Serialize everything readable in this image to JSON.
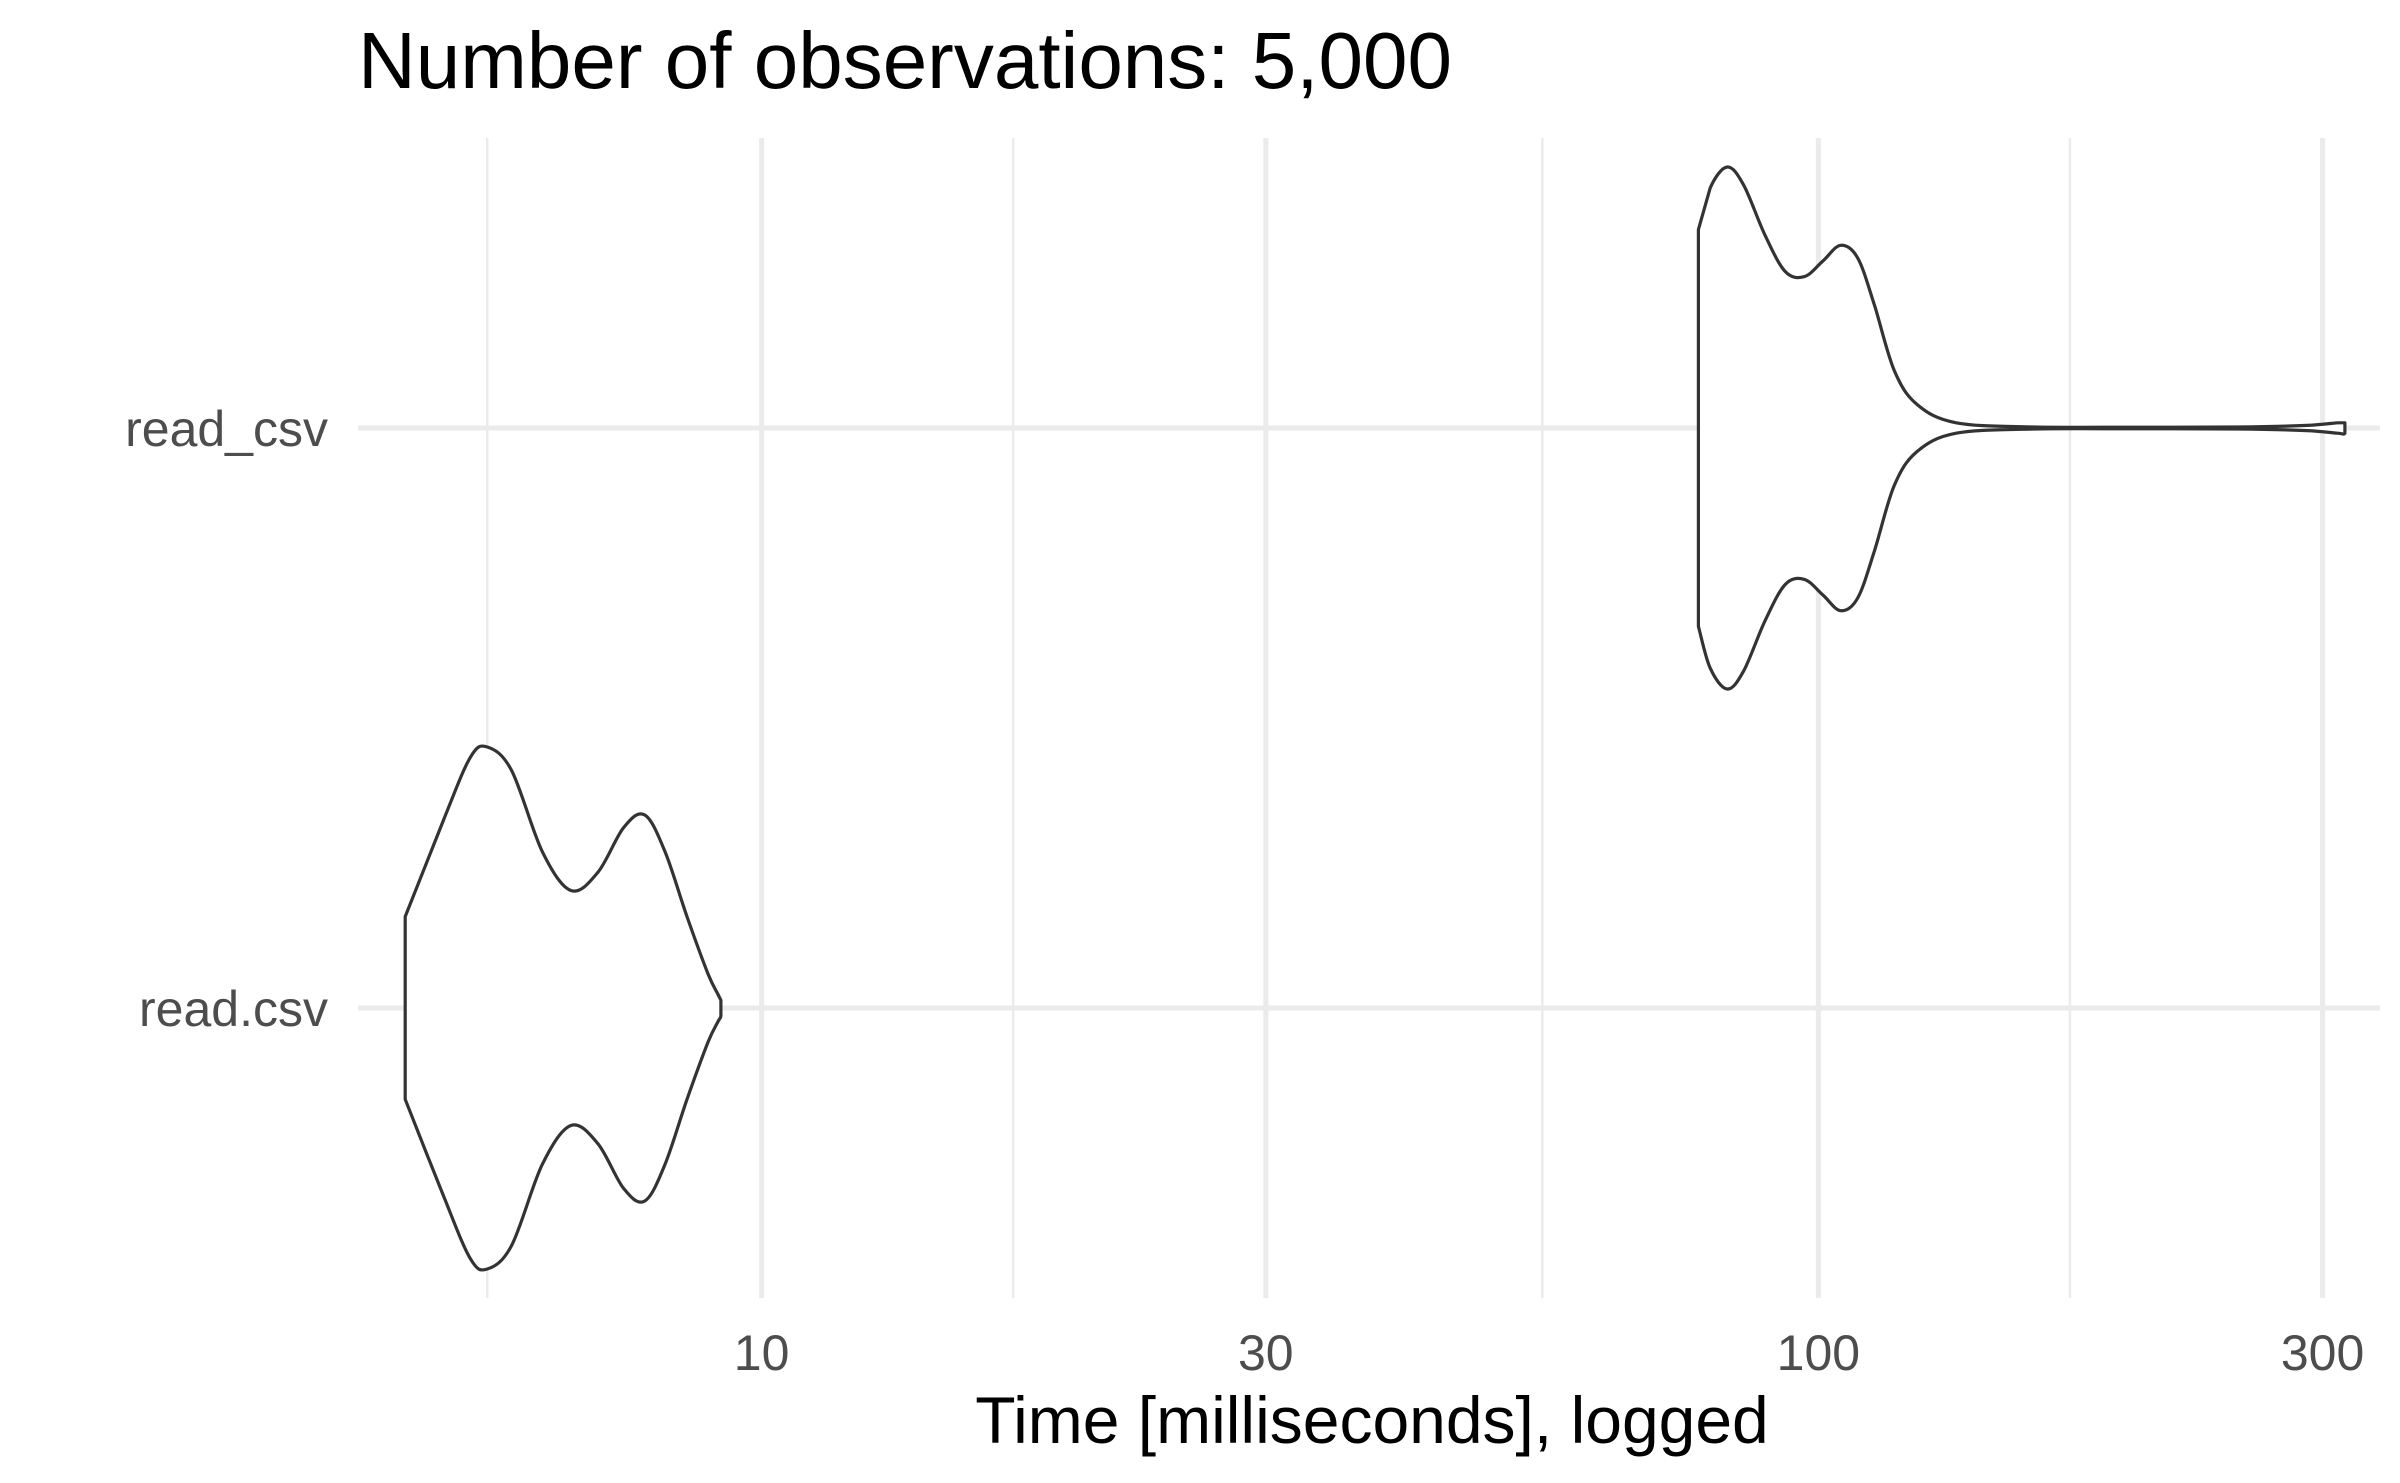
{
  "chart_data": {
    "type": "violin",
    "title": "Number of observations: 5,000",
    "xlabel": "Time [milliseconds], logged",
    "ylabel": "",
    "x_scale": "log10",
    "xlim": [
      4.15,
      340
    ],
    "x_ticks": [
      {
        "value": 10,
        "label": "10"
      },
      {
        "value": 30,
        "label": "30"
      },
      {
        "value": 100,
        "label": "100"
      },
      {
        "value": 300,
        "label": "300"
      }
    ],
    "x_minor_ticks": [
      5.5,
      17.3,
      54.8,
      173
    ],
    "categories": [
      "read_csv",
      "read.csv"
    ],
    "grid": true,
    "legend": "none",
    "colors": {
      "outline": "#333333",
      "fill": "#ffffff",
      "grid": "#ebebeb"
    },
    "series": [
      {
        "category": "read_csv",
        "density": [
          [
            77,
            0.76
          ],
          [
            79,
            0.92
          ],
          [
            82,
            1.0
          ],
          [
            85,
            0.93
          ],
          [
            89,
            0.74
          ],
          [
            93,
            0.6
          ],
          [
            97,
            0.58
          ],
          [
            101,
            0.64
          ],
          [
            105,
            0.7
          ],
          [
            109,
            0.65
          ],
          [
            113,
            0.47
          ],
          [
            118,
            0.22
          ],
          [
            124,
            0.09
          ],
          [
            135,
            0.02
          ],
          [
            160,
            0.004
          ],
          [
            200,
            0.003
          ],
          [
            250,
            0.004
          ],
          [
            290,
            0.01
          ],
          [
            310,
            0.02
          ],
          [
            315,
            0.02
          ]
        ]
      },
      {
        "category": "read.csv",
        "density": [
          [
            4.6,
            0.35
          ],
          [
            5.0,
            0.72
          ],
          [
            5.3,
            0.96
          ],
          [
            5.5,
            1.0
          ],
          [
            5.8,
            0.91
          ],
          [
            6.2,
            0.6
          ],
          [
            6.6,
            0.45
          ],
          [
            7.0,
            0.52
          ],
          [
            7.4,
            0.69
          ],
          [
            7.75,
            0.74
          ],
          [
            8.1,
            0.6
          ],
          [
            8.5,
            0.35
          ],
          [
            8.9,
            0.13
          ],
          [
            9.1,
            0.05
          ],
          [
            9.15,
            0.03
          ]
        ]
      }
    ]
  }
}
